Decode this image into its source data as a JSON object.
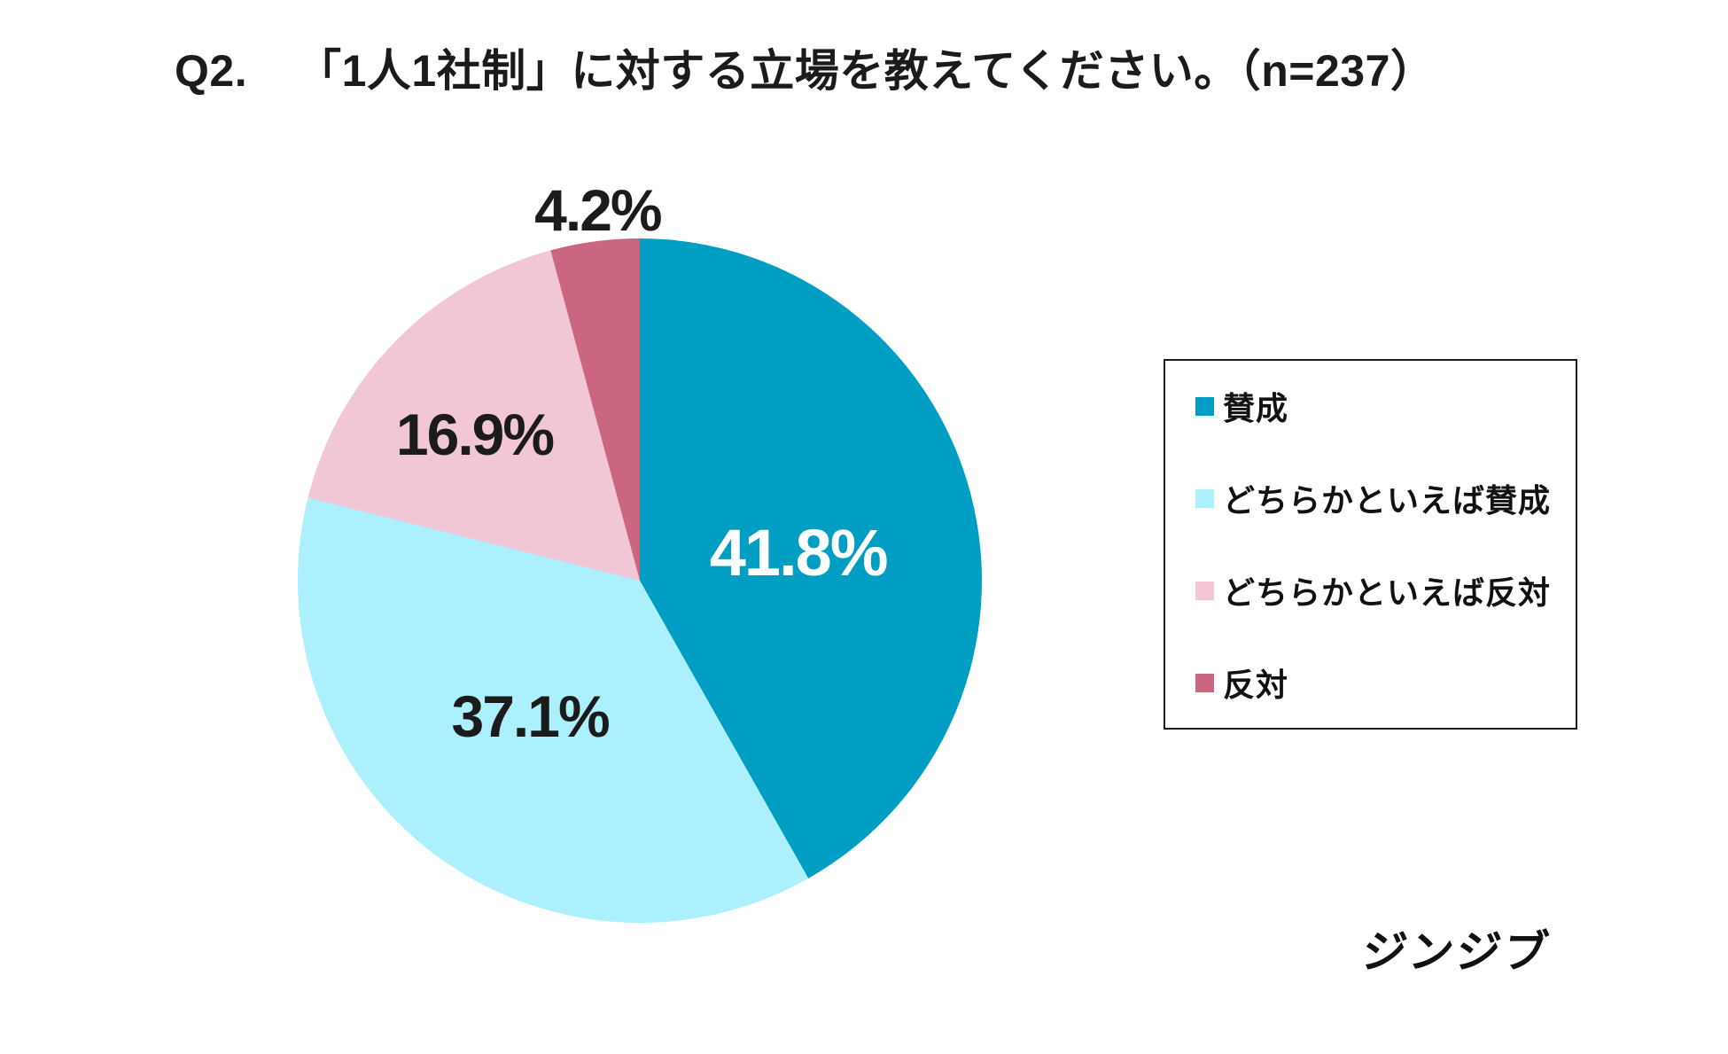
{
  "page": {
    "background": "#ffffff"
  },
  "title": {
    "prefix": "Q2.",
    "text": "「1人1社制」に対する立場を教えてください。（n=237）"
  },
  "chart_data": {
    "type": "pie",
    "title": "Q2. 「1人1社制」に対する立場を教えてください。",
    "sample_size_label": "n=237",
    "categories": [
      "賛成",
      "どちらかといえば賛成",
      "どちらかといえば反対",
      "反対"
    ],
    "values": [
      41.8,
      37.1,
      16.9,
      4.2
    ],
    "value_labels": [
      "41.8%",
      "37.1%",
      "16.9%",
      "4.2%"
    ],
    "colors": [
      "#009EC2",
      "#ABF0FC",
      "#F2C7D5",
      "#CB6680"
    ],
    "start_angle_deg": 0,
    "direction": "clockwise",
    "legend_position": "right"
  },
  "legend": {
    "items": [
      {
        "label": "賛成",
        "color": "#009EC2"
      },
      {
        "label": "どちらかといえば賛成",
        "color": "#ABF0FC"
      },
      {
        "label": "どちらかといえば反対",
        "color": "#F2C7D5"
      },
      {
        "label": "反対",
        "color": "#CB6680"
      }
    ]
  },
  "footer": {
    "logo_text": "ジンジブ"
  }
}
